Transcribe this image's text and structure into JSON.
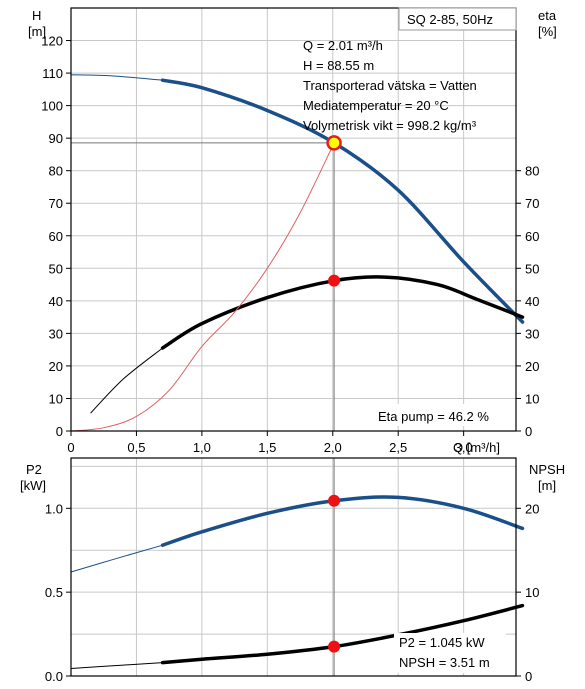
{
  "chart_data": [
    {
      "type": "line",
      "title": "SQ 2-85, 50Hz",
      "xlabel": "Q [m³/h]",
      "ylabel_left": "H\n[m]",
      "ylabel_right": "eta\n[%]",
      "xlim": [
        0,
        3.4
      ],
      "ylim_left": [
        0,
        130
      ],
      "ylim_right": [
        0,
        130
      ],
      "x_ticks": [
        "0",
        "0,5",
        "1,0",
        "1,5",
        "2,0",
        "2,5",
        "3,0"
      ],
      "y_left_ticks": [
        "0",
        "10",
        "20",
        "30",
        "40",
        "50",
        "60",
        "70",
        "80",
        "90",
        "100",
        "110",
        "120"
      ],
      "y_right_ticks": [
        "0",
        "10",
        "20",
        "30",
        "40",
        "50",
        "60",
        "70",
        "80"
      ],
      "grid": true,
      "info": [
        "Q = 2.01 m³/h",
        "H = 88.55 m",
        "Transporterad vätska = Vatten",
        "Mediatemperatur = 20 °C",
        "Volymetrisk vikt = 998.2 kg/m³"
      ],
      "eta_label": "Eta pump = 46.2 %",
      "series": [
        {
          "id": "H",
          "color": "#1a4f8a",
          "values_thin": [
            [
              0,
              109.5
            ],
            [
              0.3,
              109.2
            ],
            [
              0.7,
              107.8
            ]
          ],
          "values": [
            [
              0.7,
              107.8
            ],
            [
              1.0,
              105.5
            ],
            [
              1.5,
              98.5
            ],
            [
              2.01,
              88.55
            ],
            [
              2.5,
              74.0
            ],
            [
              3.0,
              52.0
            ],
            [
              3.45,
              33.5
            ]
          ]
        },
        {
          "id": "eta",
          "color": "#000000",
          "values_thin": [
            [
              0.15,
              5.5
            ],
            [
              0.4,
              16.0
            ],
            [
              0.7,
              25.5
            ]
          ],
          "values": [
            [
              0.7,
              25.5
            ],
            [
              1.0,
              33.0
            ],
            [
              1.5,
              41.0
            ],
            [
              2.01,
              46.2
            ],
            [
              2.4,
              47.3
            ],
            [
              2.8,
              45.0
            ],
            [
              3.1,
              40.5
            ],
            [
              3.45,
              35.0
            ]
          ]
        },
        {
          "id": "system",
          "color": "#e06060",
          "values": [
            [
              0,
              0
            ],
            [
              0.25,
              1.0
            ],
            [
              0.5,
              4.5
            ],
            [
              0.75,
              12.5
            ],
            [
              1.0,
              26.0
            ],
            [
              1.25,
              36.5
            ],
            [
              1.5,
              50.0
            ],
            [
              1.75,
              67.0
            ],
            [
              2.01,
              88.55
            ]
          ]
        }
      ],
      "operating_points": [
        {
          "series": "H",
          "x": 2.01,
          "y": 88.55
        },
        {
          "series": "eta",
          "x": 2.01,
          "y": 46.2
        }
      ]
    },
    {
      "type": "line",
      "xlim": [
        0,
        3.4
      ],
      "ylabel_left": "P2\n[kW]",
      "ylabel_right": "NPSH\n[m]",
      "ylim_left": [
        0,
        1.3
      ],
      "ylim_right": [
        0,
        26
      ],
      "y_left_ticks": [
        "0.0",
        "0.5",
        "1.0"
      ],
      "y_right_ticks": [
        "0",
        "10",
        "20"
      ],
      "grid": true,
      "p2_label": "P2 = 1.045 kW",
      "npsh_label": "NPSH = 3.51 m",
      "series": [
        {
          "id": "P2",
          "color": "#1a4f8a",
          "values_thin": [
            [
              0,
              0.62
            ],
            [
              0.3,
              0.69
            ],
            [
              0.7,
              0.78
            ]
          ],
          "values": [
            [
              0.7,
              0.78
            ],
            [
              1.0,
              0.86
            ],
            [
              1.5,
              0.97
            ],
            [
              2.01,
              1.045
            ],
            [
              2.5,
              1.065
            ],
            [
              3.0,
              1.0
            ],
            [
              3.45,
              0.88
            ]
          ]
        },
        {
          "id": "NPSH",
          "color": "#000000",
          "values_thin": [
            [
              0,
              0.9
            ],
            [
              0.4,
              1.3
            ],
            [
              0.7,
              1.6
            ]
          ],
          "values": [
            [
              0.7,
              1.6
            ],
            [
              1.0,
              2.0
            ],
            [
              1.5,
              2.6
            ],
            [
              2.01,
              3.51
            ],
            [
              2.5,
              4.9
            ],
            [
              3.0,
              6.6
            ],
            [
              3.45,
              8.4
            ]
          ]
        }
      ],
      "operating_points": [
        {
          "series": "P2",
          "x": 2.01,
          "y": 1.045
        },
        {
          "series": "NPSH",
          "x": 2.01,
          "y": 3.51
        }
      ]
    }
  ]
}
